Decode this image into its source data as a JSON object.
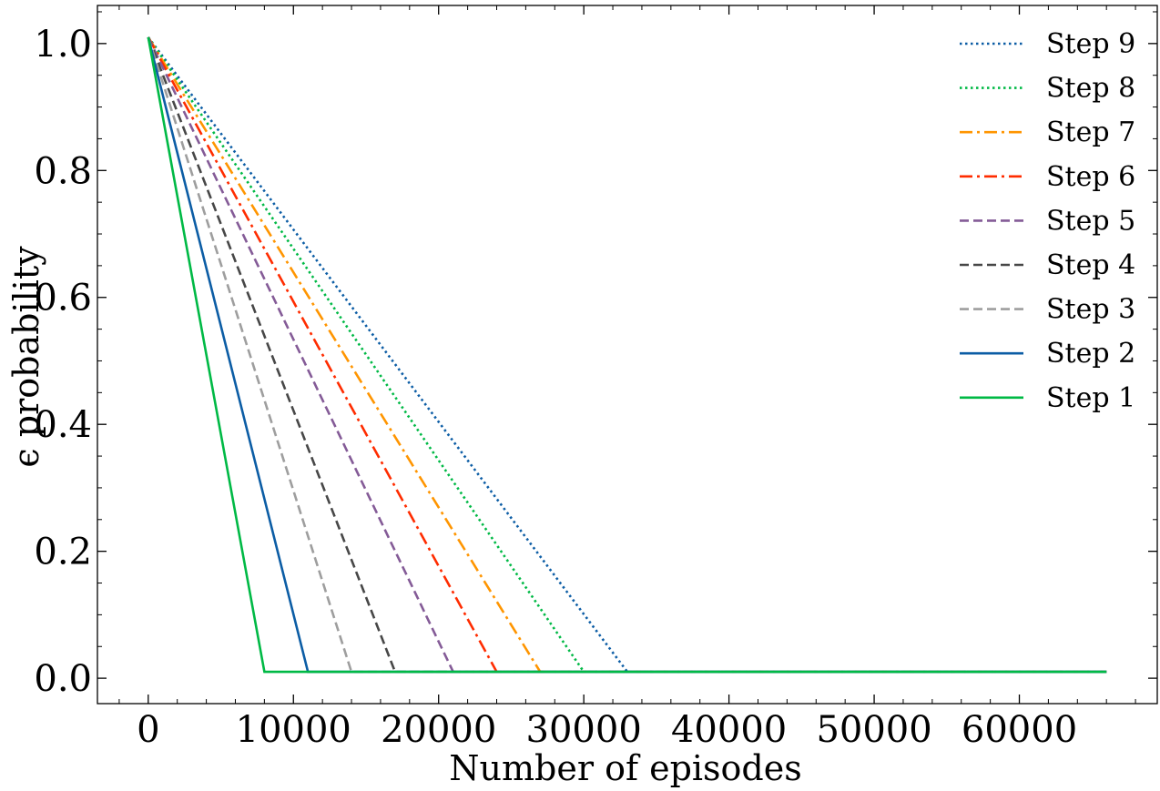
{
  "chart_data": {
    "type": "line",
    "title": "",
    "xlabel": "Number of episodes",
    "ylabel": "ϵ probability",
    "xlim": [
      -3500,
      69500
    ],
    "ylim": [
      -0.04,
      1.06
    ],
    "x_major_ticks": [
      0,
      10000,
      20000,
      30000,
      40000,
      50000,
      60000
    ],
    "x_tick_labels": [
      "0",
      "10000",
      "20000",
      "30000",
      "40000",
      "50000",
      "60000"
    ],
    "y_major_ticks": [
      0.0,
      0.2,
      0.4,
      0.6,
      0.8,
      1.0
    ],
    "y_tick_labels": [
      "0.0",
      "0.2",
      "0.4",
      "0.6",
      "0.8",
      "1.0"
    ],
    "grid": false,
    "legend_position": "top-right",
    "series": [
      {
        "name": "Step 9",
        "color": "#0c5da5",
        "dash": "dotted",
        "x": [
          0,
          33000,
          66000
        ],
        "y": [
          1.01,
          0.01,
          0.01
        ]
      },
      {
        "name": "Step 8",
        "color": "#00b945",
        "dash": "dotted",
        "x": [
          0,
          30000,
          66000
        ],
        "y": [
          1.01,
          0.01,
          0.01
        ]
      },
      {
        "name": "Step 7",
        "color": "#ff9500",
        "dash": "dashdot",
        "x": [
          0,
          27000,
          66000
        ],
        "y": [
          1.01,
          0.01,
          0.01
        ]
      },
      {
        "name": "Step 6",
        "color": "#ff2c00",
        "dash": "dashdot",
        "x": [
          0,
          24000,
          66000
        ],
        "y": [
          1.01,
          0.01,
          0.01
        ]
      },
      {
        "name": "Step 5",
        "color": "#845b97",
        "dash": "dashed",
        "x": [
          0,
          21000,
          66000
        ],
        "y": [
          1.01,
          0.01,
          0.01
        ]
      },
      {
        "name": "Step 4",
        "color": "#474747",
        "dash": "dashed",
        "x": [
          0,
          17000,
          66000
        ],
        "y": [
          1.01,
          0.01,
          0.01
        ]
      },
      {
        "name": "Step 3",
        "color": "#9e9e9e",
        "dash": "dashed",
        "x": [
          0,
          14000,
          66000
        ],
        "y": [
          1.01,
          0.01,
          0.01
        ]
      },
      {
        "name": "Step 2",
        "color": "#0c5da5",
        "dash": "solid",
        "x": [
          0,
          11000,
          66000
        ],
        "y": [
          1.01,
          0.01,
          0.01
        ]
      },
      {
        "name": "Step 1",
        "color": "#00b945",
        "dash": "solid",
        "x": [
          0,
          8000,
          66000
        ],
        "y": [
          1.01,
          0.01,
          0.01
        ]
      }
    ]
  }
}
